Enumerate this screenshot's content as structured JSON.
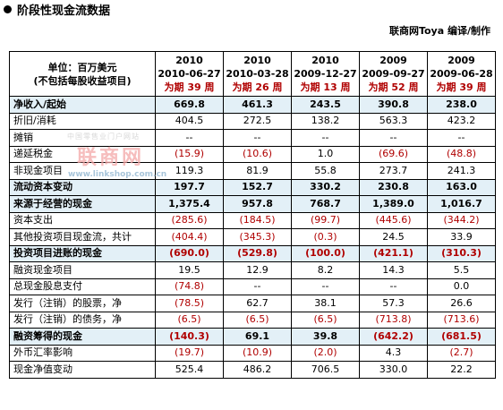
{
  "title": "阶段性现金流数据",
  "credit": "联商网Toya 编译/制作",
  "watermark": {
    "small": "中国零售业门户网站",
    "main": "联商网",
    "url": "www.linkshop.com.cn"
  },
  "header": {
    "unit_line1": "单位：百万美元",
    "unit_line2": "(不包括每股收益项目)",
    "columns": [
      {
        "year": "2010",
        "date": "2010-06-27",
        "period": "为期 39 周"
      },
      {
        "year": "2010",
        "date": "2010-03-28",
        "period": "为期 26 周"
      },
      {
        "year": "2010",
        "date": "2009-12-27",
        "period": "为期 13 周"
      },
      {
        "year": "2009",
        "date": "2009-09-27",
        "period": "为期 52 周"
      },
      {
        "year": "2009",
        "date": "2009-06-28",
        "period": "为期 39 周"
      }
    ]
  },
  "rows": [
    {
      "label": "净收入/起始",
      "bold": true,
      "values": [
        "669.8",
        "461.3",
        "243.5",
        "390.8",
        "238.0"
      ]
    },
    {
      "label": "折旧/消耗",
      "bold": false,
      "values": [
        "404.5",
        "272.5",
        "138.2",
        "563.3",
        "423.2"
      ]
    },
    {
      "label": "摊销",
      "bold": false,
      "values": [
        "--",
        "--",
        "--",
        "--",
        "--"
      ]
    },
    {
      "label": "递延税金",
      "bold": false,
      "values": [
        "(15.9)",
        "(10.6)",
        "1.0",
        "(69.6)",
        "(48.8)"
      ]
    },
    {
      "label": "非现金项目",
      "bold": false,
      "values": [
        "119.3",
        "81.9",
        "55.8",
        "273.7",
        "241.3"
      ]
    },
    {
      "label": "流动资本变动",
      "bold": true,
      "values": [
        "197.7",
        "152.7",
        "330.2",
        "230.8",
        "163.0"
      ]
    },
    {
      "label": "来源于经营的现金",
      "bold": true,
      "values": [
        "1,375.4",
        "957.8",
        "768.7",
        "1,389.0",
        "1,016.7"
      ]
    },
    {
      "label": "资本支出",
      "bold": false,
      "values": [
        "(285.6)",
        "(184.5)",
        "(99.7)",
        "(445.6)",
        "(344.2)"
      ]
    },
    {
      "label": "其他投资项目现金流，共计",
      "bold": false,
      "values": [
        "(404.4)",
        "(345.3)",
        "(0.3)",
        "24.5",
        "33.9"
      ]
    },
    {
      "label": "投资项目进账的现金",
      "bold": true,
      "values": [
        "(690.0)",
        "(529.8)",
        "(100.0)",
        "(421.1)",
        "(310.3)"
      ]
    },
    {
      "label": "融资现金项目",
      "bold": false,
      "values": [
        "19.5",
        "12.9",
        "8.2",
        "14.3",
        "5.5"
      ]
    },
    {
      "label": "总现金股息支付",
      "bold": false,
      "values": [
        "(74.8)",
        "--",
        "--",
        "--",
        "0.0"
      ]
    },
    {
      "label": "发行（注销）的股票，净",
      "bold": false,
      "values": [
        "(78.5)",
        "62.7",
        "38.1",
        "57.3",
        "26.6"
      ]
    },
    {
      "label": "发行（注销）的债务，净",
      "bold": false,
      "values": [
        "(6.5)",
        "(6.5)",
        "(6.5)",
        "(713.8)",
        "(713.6)"
      ]
    },
    {
      "label": "融资筹得的现金",
      "bold": true,
      "values": [
        "(140.3)",
        "69.1",
        "39.8",
        "(642.2)",
        "(681.5)"
      ]
    },
    {
      "label": "外币汇率影响",
      "bold": false,
      "values": [
        "(19.7)",
        "(10.9)",
        "(2.0)",
        "4.3",
        "(2.7)"
      ]
    },
    {
      "label": "现金净值变动",
      "bold": false,
      "values": [
        "525.4",
        "486.2",
        "706.5",
        "330.0",
        "22.2"
      ]
    }
  ]
}
